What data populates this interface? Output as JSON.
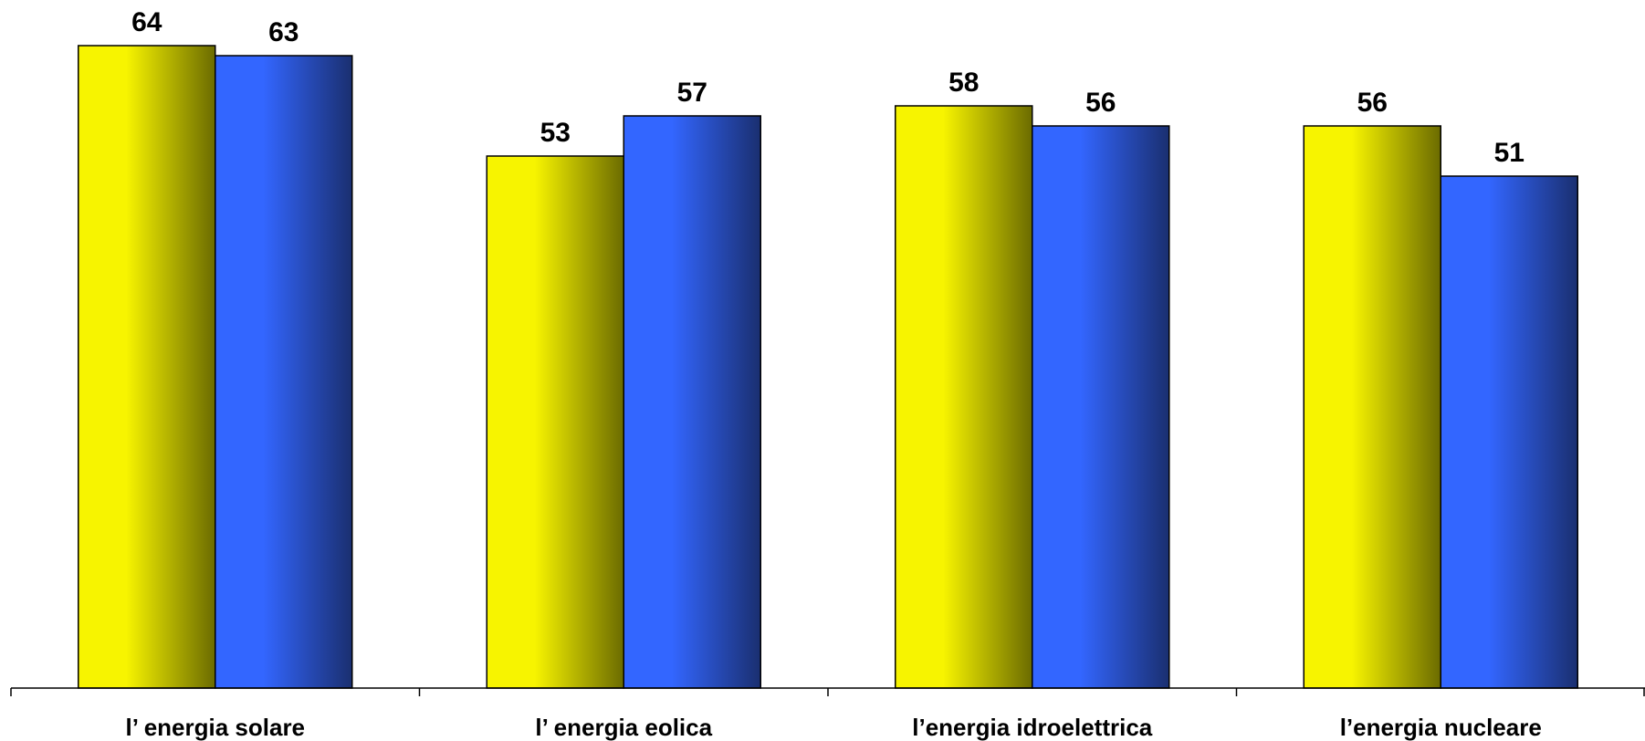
{
  "chart_data": {
    "type": "bar",
    "categories": [
      "l’ energia solare",
      "l’ energia eolica",
      "l’energia idroelettrica",
      "l’energia nucleare"
    ],
    "series": [
      {
        "values": [
          64,
          53,
          58,
          56
        ]
      },
      {
        "values": [
          63,
          57,
          56,
          51
        ]
      }
    ],
    "grid": false,
    "legend": "none"
  },
  "colors": {
    "series_1": "#f7f400",
    "series_1_dark": "#6b6b00",
    "series_2": "#3366ff",
    "series_2_dark": "#1a2f70",
    "axis": "#000000"
  }
}
